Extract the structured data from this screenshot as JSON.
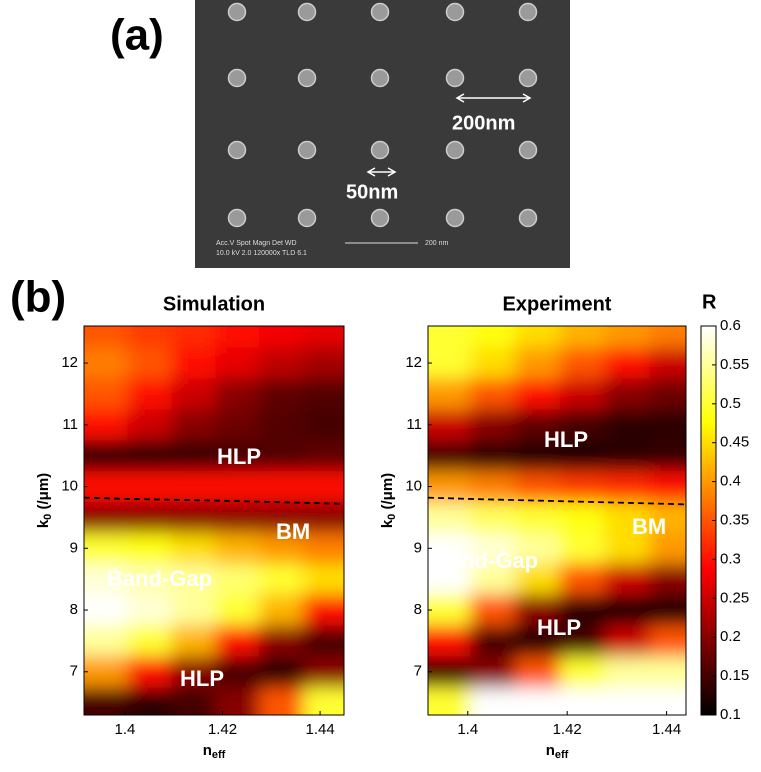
{
  "panel_a": {
    "label": "(a)",
    "info_lines": [
      "Acc.V  Spot Magn    Det  WD",
      "10.0 kV 2.0  120000x TLD 6.1"
    ],
    "scale_bar": "200 nm",
    "annotations": [
      "200nm",
      "50nm"
    ]
  },
  "panel_b": {
    "label": "(b)",
    "colorbar": {
      "label": "R",
      "colormap": "hot",
      "lim": [
        0.1,
        0.6
      ],
      "ticks": [
        0.1,
        0.15,
        0.2,
        0.25,
        0.3,
        0.35,
        0.4,
        0.45,
        0.5,
        0.55,
        0.6
      ]
    }
  },
  "chart_data": [
    {
      "type": "heatmap",
      "title": "Simulation",
      "xlabel": {
        "main": "n",
        "sub": "eff"
      },
      "ylabel": {
        "main": "k",
        "sub": "0",
        "rest": " (/μm)"
      },
      "x": [
        1.396,
        1.405,
        1.414,
        1.423,
        1.432,
        1.441
      ],
      "y": [
        12.5,
        12,
        11.5,
        11,
        10.5,
        10,
        9.5,
        9,
        8.5,
        8,
        7.5,
        7,
        6.5
      ],
      "values": [
        [
          0.35,
          0.33,
          0.32,
          0.3,
          0.28,
          0.27
        ],
        [
          0.38,
          0.35,
          0.3,
          0.27,
          0.24,
          0.22
        ],
        [
          0.35,
          0.3,
          0.25,
          0.2,
          0.17,
          0.16
        ],
        [
          0.3,
          0.25,
          0.2,
          0.18,
          0.16,
          0.15
        ],
        [
          0.13,
          0.13,
          0.14,
          0.15,
          0.16,
          0.17
        ],
        [
          0.3,
          0.3,
          0.3,
          0.3,
          0.3,
          0.3
        ],
        [
          0.2,
          0.2,
          0.2,
          0.2,
          0.2,
          0.2
        ],
        [
          0.5,
          0.48,
          0.45,
          0.42,
          0.4,
          0.38
        ],
        [
          0.58,
          0.56,
          0.55,
          0.53,
          0.5,
          0.45
        ],
        [
          0.6,
          0.58,
          0.55,
          0.5,
          0.42,
          0.3
        ],
        [
          0.55,
          0.5,
          0.42,
          0.3,
          0.2,
          0.15
        ],
        [
          0.4,
          0.3,
          0.2,
          0.15,
          0.13,
          0.2
        ],
        [
          0.15,
          0.13,
          0.15,
          0.2,
          0.35,
          0.5
        ]
      ],
      "dashed_line": {
        "x": [
          1.3916,
          1.4,
          1.42,
          1.44,
          1.4449
        ],
        "y": [
          9.82,
          9.8,
          9.77,
          9.73,
          9.72
        ]
      },
      "annotations": [
        "HLP",
        "BM",
        "Band-Gap",
        "HLP"
      ],
      "xlim": [
        1.3916,
        1.4449
      ],
      "ylim": [
        6.3,
        12.6
      ],
      "xticks": [
        1.4,
        1.42,
        1.44
      ],
      "yticks": [
        7,
        8,
        9,
        10,
        11,
        12
      ]
    },
    {
      "type": "heatmap",
      "title": "Experiment",
      "xlabel": {
        "main": "n",
        "sub": "eff"
      },
      "ylabel": {
        "main": "k",
        "sub": "0",
        "rest": " (/μm)"
      },
      "x": [
        1.396,
        1.405,
        1.414,
        1.423,
        1.432,
        1.441
      ],
      "y": [
        12.5,
        12,
        11.5,
        11,
        10.5,
        10,
        9.5,
        9,
        8.5,
        8,
        7.5,
        7,
        6.5
      ],
      "values": [
        [
          0.5,
          0.48,
          0.45,
          0.42,
          0.4,
          0.38
        ],
        [
          0.5,
          0.45,
          0.4,
          0.35,
          0.3,
          0.25
        ],
        [
          0.4,
          0.35,
          0.3,
          0.25,
          0.2,
          0.18
        ],
        [
          0.25,
          0.2,
          0.17,
          0.15,
          0.13,
          0.13
        ],
        [
          0.15,
          0.13,
          0.12,
          0.12,
          0.13,
          0.14
        ],
        [
          0.4,
          0.38,
          0.35,
          0.33,
          0.32,
          0.3
        ],
        [
          0.55,
          0.52,
          0.5,
          0.48,
          0.45,
          0.42
        ],
        [
          0.6,
          0.58,
          0.55,
          0.5,
          0.45,
          0.4
        ],
        [
          0.6,
          0.55,
          0.45,
          0.35,
          0.25,
          0.2
        ],
        [
          0.5,
          0.35,
          0.2,
          0.13,
          0.11,
          0.12
        ],
        [
          0.3,
          0.15,
          0.12,
          0.15,
          0.25,
          0.35
        ],
        [
          0.15,
          0.2,
          0.35,
          0.5,
          0.55,
          0.55
        ],
        [
          0.5,
          0.6,
          0.6,
          0.6,
          0.6,
          0.6
        ]
      ],
      "dashed_line": {
        "x": [
          1.392,
          1.4,
          1.42,
          1.44,
          1.4439
        ],
        "y": [
          9.82,
          9.8,
          9.76,
          9.72,
          9.71
        ]
      },
      "annotations": [
        "HLP",
        "BM",
        "Band-Gap",
        "HLP"
      ],
      "xlim": [
        1.392,
        1.4439
      ],
      "ylim": [
        6.3,
        12.6
      ],
      "xticks": [
        1.4,
        1.42,
        1.44
      ],
      "yticks": [
        7,
        8,
        9,
        10,
        11,
        12
      ]
    }
  ]
}
